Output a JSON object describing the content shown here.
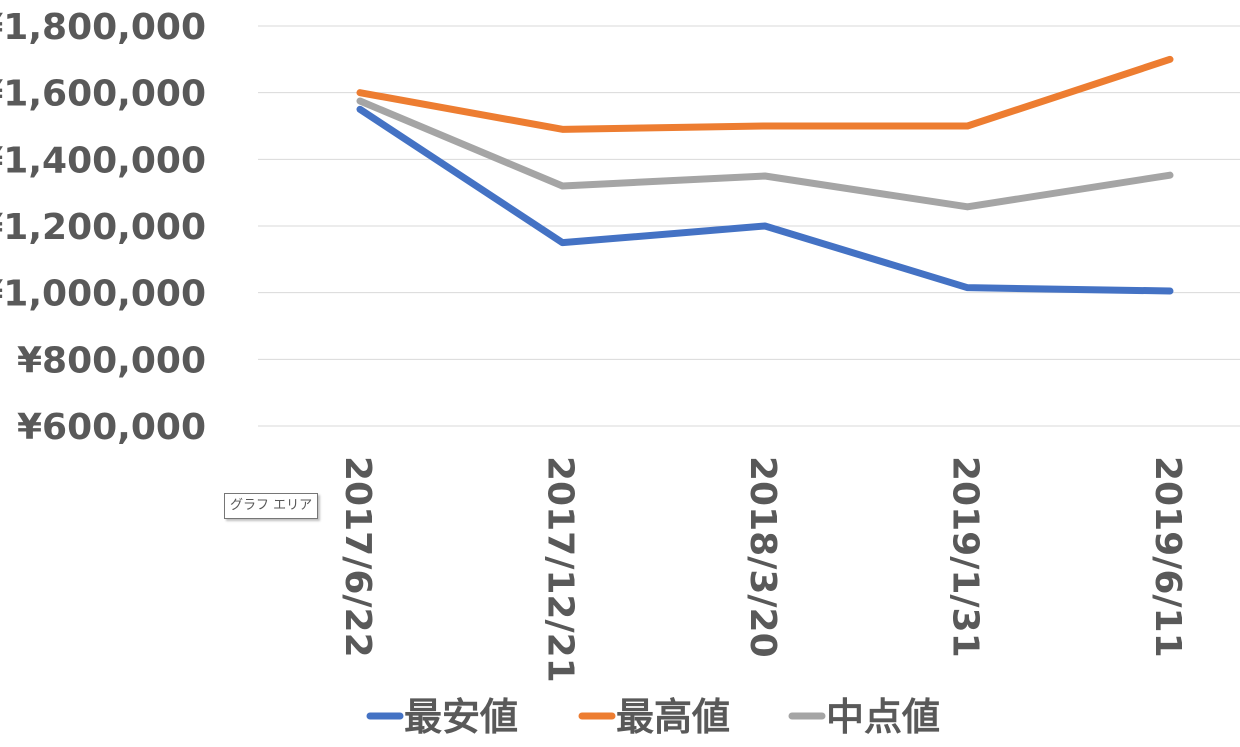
{
  "chart_data": {
    "type": "line",
    "categories": [
      "2017/6/22",
      "2017/12/21",
      "2018/3/20",
      "2019/1/31",
      "2019/6/11"
    ],
    "series": [
      {
        "name": "最安値",
        "values": [
          1550000,
          1150000,
          1200000,
          1015000,
          1005000
        ],
        "color": "#4472C4"
      },
      {
        "name": "最高値",
        "values": [
          1600000,
          1490000,
          1500000,
          1500000,
          1700000
        ],
        "color": "#ED7D31"
      },
      {
        "name": "中点値",
        "values": [
          1575000,
          1320000,
          1350000,
          1257500,
          1352500
        ],
        "color": "#A5A5A5"
      }
    ],
    "yticks": [
      "¥600,000",
      "¥800,000",
      "¥1,000,000",
      "¥1,200,000",
      "¥1,400,000",
      "¥1,600,000",
      "¥1,800,000"
    ],
    "ylim": [
      600000,
      1800000
    ],
    "grid": true,
    "legend_position": "bottom"
  },
  "tooltip": {
    "label": "グラフ エリア"
  }
}
